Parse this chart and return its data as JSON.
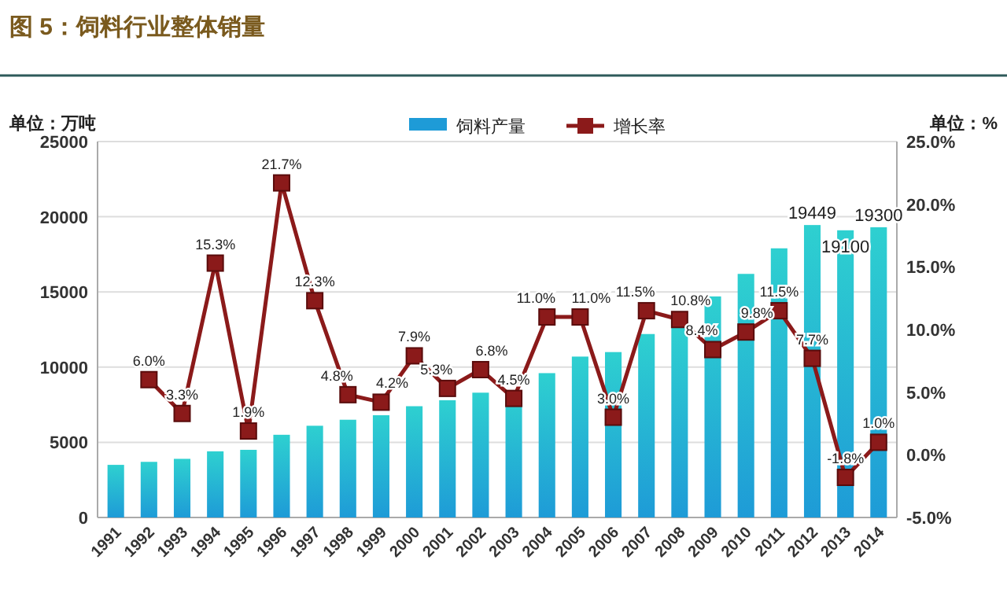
{
  "chart_data": {
    "type": "bar",
    "title": "图 5：饲料行业整体销量",
    "ylabel": "单位：万吨",
    "y2label": "单位：%",
    "categories": [
      "1991",
      "1992",
      "1993",
      "1994",
      "1995",
      "1996",
      "1997",
      "1998",
      "1999",
      "2000",
      "2001",
      "2002",
      "2003",
      "2004",
      "2005",
      "2006",
      "2007",
      "2008",
      "2009",
      "2010",
      "2011",
      "2012",
      "2013",
      "2014"
    ],
    "series": [
      {
        "name": "饲料产量",
        "color": "#1e9bd7",
        "values": [
          3500,
          3700,
          3900,
          4400,
          4500,
          5500,
          6100,
          6500,
          6800,
          7400,
          7800,
          8300,
          8400,
          9600,
          10700,
          11000,
          12200,
          12700,
          14700,
          16200,
          17900,
          19449,
          19100,
          19300
        ],
        "value_labels": [
          null,
          null,
          null,
          null,
          null,
          null,
          null,
          null,
          null,
          null,
          null,
          null,
          null,
          null,
          null,
          null,
          null,
          null,
          null,
          null,
          null,
          "19449",
          "19100",
          "19300"
        ]
      },
      {
        "name": "增长率",
        "type": "line",
        "axis": "y2",
        "color": "#8b1a1a",
        "marker": "square",
        "values": [
          null,
          6.0,
          3.3,
          15.3,
          1.9,
          21.7,
          12.3,
          4.8,
          4.2,
          7.9,
          5.3,
          6.8,
          4.5,
          11.0,
          11.0,
          3.0,
          11.5,
          10.8,
          8.4,
          9.8,
          11.5,
          7.7,
          -1.8,
          1.0
        ],
        "value_labels": [
          null,
          "6.0%",
          "3.3%",
          "15.3%",
          "1.9%",
          "21.7%",
          "12.3%",
          "4.8%",
          "4.2%",
          "7.9%",
          "5.3%",
          "6.8%",
          "4.5%",
          "11.0%",
          "11.0%",
          "3.0%",
          "11.5%",
          "10.8%",
          "8.4%",
          "9.8%",
          "11.5%",
          "7.7%",
          "-1.8%",
          "1.0%"
        ]
      }
    ],
    "ylim": [
      0,
      25000
    ],
    "yticks": [
      0,
      5000,
      10000,
      15000,
      20000,
      25000
    ],
    "y2lim": [
      -5,
      25
    ],
    "y2ticks": [
      {
        "value": -5,
        "label": "-5.0%"
      },
      {
        "value": 0,
        "label": "0.0%"
      },
      {
        "value": 5,
        "label": "5.0%"
      },
      {
        "value": 10,
        "label": "10.0%"
      },
      {
        "value": 15,
        "label": "15.0%"
      },
      {
        "value": 20,
        "label": "20.0%"
      },
      {
        "value": 25,
        "label": "25.0%"
      }
    ],
    "grid": "y",
    "legend": "top"
  }
}
